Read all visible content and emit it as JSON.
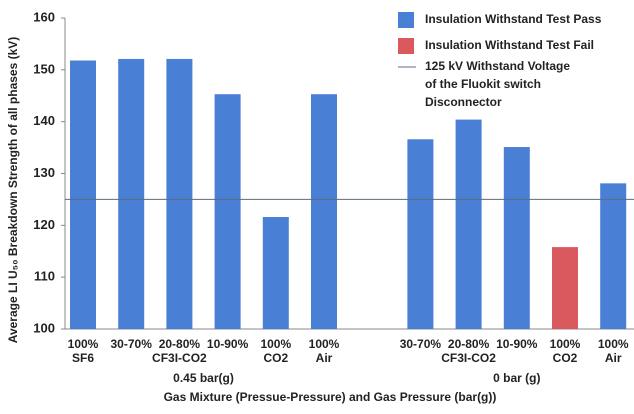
{
  "chart_data": {
    "type": "bar",
    "ylabel": "Average LI U₅₀ Breakdown Strength of all phases (kV)",
    "xlabel": "Gas Mixture (Pressue-Pressure) and Gas Pressure (bar(g))",
    "ylim": [
      100,
      160
    ],
    "yticks": [
      100,
      110,
      120,
      130,
      140,
      150,
      160
    ],
    "legend": [
      {
        "name": "Insulation Withstand Test Pass",
        "color": "#4a7fd6"
      },
      {
        "name": "Insulation Withstand Test Fail",
        "color": "#d9595e"
      }
    ],
    "reference_line": {
      "value": 125,
      "color": "#5c6b78",
      "label": [
        "125 kV Withstand Voltage",
        "of the Fluokit switch",
        "Disconnector"
      ]
    },
    "groups": [
      {
        "label": "0.45 bar(g)",
        "categories": [
          "100%",
          "30-70%",
          "20-80%",
          "10-90%",
          "100%",
          "100%"
        ],
        "sublabels": [
          "SF6",
          null,
          "CF3I-CO2",
          null,
          "CO2",
          "Air"
        ],
        "values": [
          151.8,
          152.1,
          152.1,
          145.3,
          121.6,
          145.3
        ],
        "colors": [
          "#4a7fd6",
          "#4a7fd6",
          "#4a7fd6",
          "#4a7fd6",
          "#4a7fd6",
          "#4a7fd6"
        ]
      },
      {
        "label": "0 bar (g)",
        "categories": [
          "30-70%",
          "20-80%",
          "10-90%",
          "100%",
          "100%"
        ],
        "sublabels": [
          null,
          "CF3I-CO2",
          null,
          "CO2",
          "Air"
        ],
        "values": [
          136.6,
          140.4,
          135.1,
          115.8,
          128.1
        ],
        "colors": [
          "#4a7fd6",
          "#4a7fd6",
          "#4a7fd6",
          "#d9595e",
          "#4a7fd6"
        ]
      }
    ]
  }
}
